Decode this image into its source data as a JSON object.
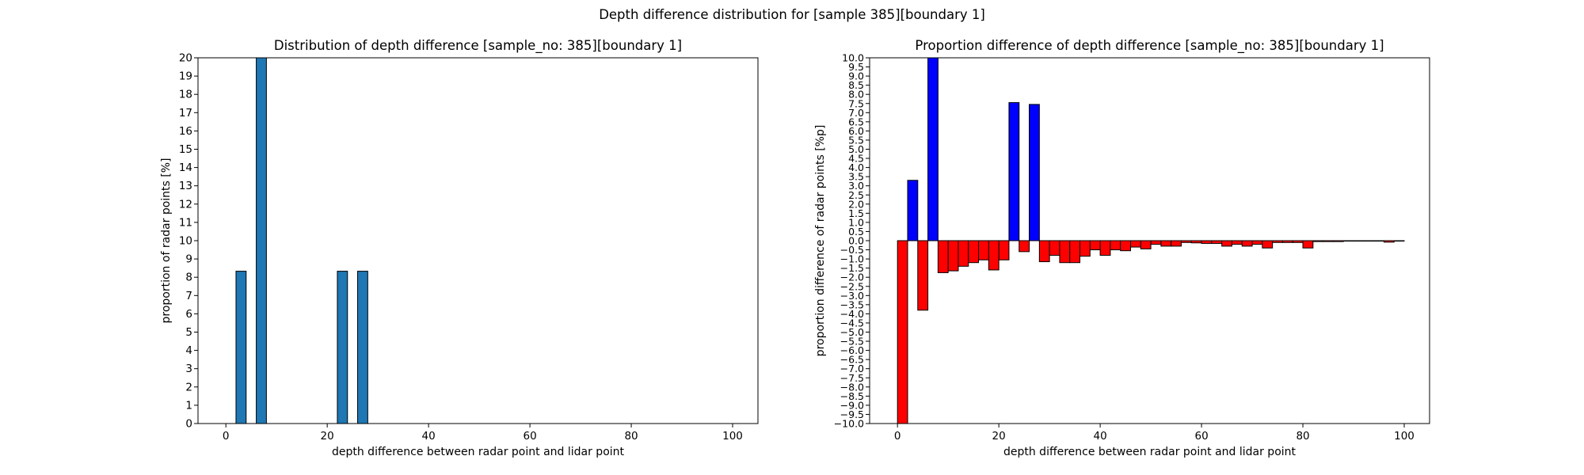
{
  "suptitle": "Depth difference distribution for [sample 385][boundary 1]",
  "chart_data": [
    {
      "type": "bar",
      "title": "Distribution of depth difference [sample_no: 385][boundary 1]",
      "xlabel": "depth difference between radar point and lidar point",
      "ylabel": "proportion of radar points [%]",
      "xlim": [
        -5.5,
        105
      ],
      "ylim": [
        0,
        20
      ],
      "xticks": [
        0,
        20,
        40,
        60,
        80,
        100
      ],
      "yticks": [
        0,
        1,
        2,
        3,
        4,
        5,
        6,
        7,
        8,
        9,
        10,
        11,
        12,
        13,
        14,
        15,
        16,
        17,
        18,
        19,
        20
      ],
      "bar_width": 2,
      "x": [
        3,
        7,
        23,
        27
      ],
      "values": [
        8.33,
        20.0,
        8.33,
        8.33
      ],
      "color": "#1f77b4"
    },
    {
      "type": "bar",
      "title": "Proportion difference of depth difference [sample_no: 385][boundary 1]",
      "xlabel": "depth difference between radar point and lidar point",
      "ylabel": "proportion difference of radar points [%p]",
      "xlim": [
        -5.5,
        105
      ],
      "ylim": [
        -10,
        10
      ],
      "xticks": [
        0,
        20,
        40,
        60,
        80,
        100
      ],
      "yticks": [
        -10.0,
        -9.5,
        -9.0,
        -8.5,
        -8.0,
        -7.5,
        -7.0,
        -6.5,
        -6.0,
        -5.5,
        -5.0,
        -4.5,
        -4.0,
        -3.5,
        -3.0,
        -2.5,
        -2.0,
        -1.5,
        -1.0,
        -0.5,
        0.0,
        0.5,
        1.0,
        1.5,
        2.0,
        2.5,
        3.0,
        3.5,
        4.0,
        4.5,
        5.0,
        5.5,
        6.0,
        6.5,
        7.0,
        7.5,
        8.0,
        8.5,
        9.0,
        9.5,
        10.0
      ],
      "bar_width": 2,
      "x": [
        1,
        3,
        5,
        7,
        9,
        11,
        13,
        15,
        17,
        19,
        21,
        23,
        25,
        27,
        29,
        31,
        33,
        35,
        37,
        39,
        41,
        43,
        45,
        47,
        49,
        51,
        53,
        55,
        57,
        59,
        61,
        63,
        65,
        67,
        69,
        71,
        73,
        75,
        77,
        79,
        81,
        83,
        85,
        87,
        89,
        91,
        93,
        95,
        97,
        99
      ],
      "values": [
        -10.0,
        3.3,
        -3.8,
        10.0,
        -1.75,
        -1.65,
        -1.4,
        -1.2,
        -1.05,
        -1.6,
        -1.05,
        7.55,
        -0.6,
        7.45,
        -1.15,
        -0.8,
        -1.2,
        -1.2,
        -0.85,
        -0.5,
        -0.8,
        -0.5,
        -0.55,
        -0.35,
        -0.45,
        -0.2,
        -0.3,
        -0.3,
        -0.1,
        -0.12,
        -0.15,
        -0.15,
        -0.3,
        -0.2,
        -0.3,
        -0.2,
        -0.4,
        -0.1,
        -0.1,
        -0.1,
        -0.4,
        -0.05,
        -0.05,
        -0.05,
        -0.02,
        -0.02,
        -0.02,
        -0.02,
        -0.08,
        -0.02
      ],
      "positive_color": "#0000ff",
      "negative_color": "#ff0000"
    }
  ]
}
